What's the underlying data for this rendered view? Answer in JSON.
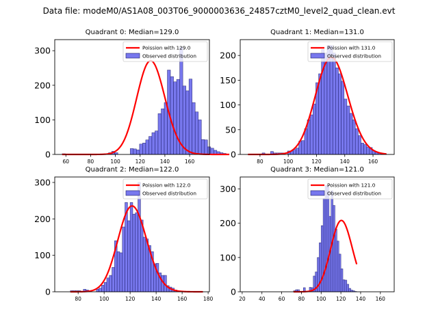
{
  "chart_data": {
    "type": "bar",
    "title": "Data file: modeM0/AS1A08_003T06_9000003636_24857cztM0_level2_quad_clean.evt",
    "panels": [
      {
        "title": "Quadrant 0: Median=129.0",
        "median": 129.0,
        "xlim": [
          51,
          176
        ],
        "ylim": [
          0,
          332
        ],
        "xticks": [
          60,
          80,
          100,
          120,
          140,
          160
        ],
        "yticks": [
          0,
          100,
          200,
          300
        ],
        "legend": {
          "line": "Poission with 129.0",
          "bars": "Observed distribution",
          "position": "upper right"
        },
        "bin_width": 2.5,
        "bin_start": 57,
        "counts": [
          2,
          0,
          0,
          0,
          0,
          0,
          0,
          0,
          0,
          0,
          0,
          0,
          0,
          0,
          0,
          5,
          9,
          5,
          0,
          0,
          0,
          0,
          17,
          16,
          13,
          30,
          33,
          42,
          52,
          63,
          68,
          118,
          132,
          150,
          244,
          225,
          210,
          217,
          310,
          198,
          184,
          218,
          150,
          123,
          100,
          43,
          42,
          22,
          18,
          12,
          8,
          5,
          3,
          1
        ]
      },
      {
        "title": "Quadrant 1: Median=131.0",
        "median": 131.0,
        "xlim": [
          66,
          175
        ],
        "ylim": [
          0,
          232
        ],
        "xticks": [
          80,
          100,
          120,
          140,
          160
        ],
        "yticks": [
          0,
          50,
          100,
          150,
          200
        ],
        "legend": {
          "line": "Poission with 131.0",
          "bars": "Observed distribution",
          "position": "upper right"
        },
        "bin_width": 2.0,
        "bin_start": 71.5,
        "counts": [
          0,
          0,
          0,
          0,
          0,
          3,
          0,
          0,
          6,
          3,
          3,
          3,
          3,
          0,
          7,
          7,
          10,
          13,
          27,
          28,
          52,
          70,
          80,
          102,
          145,
          163,
          212,
          205,
          220,
          220,
          205,
          175,
          163,
          148,
          112,
          98,
          83,
          70,
          52,
          38,
          23,
          20,
          15,
          14,
          8,
          5,
          3,
          1,
          1
        ]
      },
      {
        "title": "Quadrant 2: Median=122.0",
        "median": 122.0,
        "xlim": [
          62,
          181
        ],
        "ylim": [
          0,
          315
        ],
        "xticks": [
          80,
          100,
          120,
          140,
          160,
          180
        ],
        "yticks": [
          0,
          100,
          200,
          300
        ],
        "legend": {
          "line": "Poission with 122.0",
          "bars": "Observed distribution",
          "position": "upper right"
        },
        "bin_width": 2.0,
        "bin_start": 74,
        "counts": [
          3,
          3,
          3,
          3,
          0,
          7,
          5,
          0,
          0,
          0,
          7,
          10,
          18,
          26,
          38,
          45,
          67,
          140,
          110,
          107,
          178,
          245,
          195,
          245,
          213,
          217,
          300,
          197,
          150,
          145,
          127,
          110,
          77,
          78,
          52,
          45,
          45,
          17,
          13,
          10,
          5,
          3,
          1,
          1,
          0,
          0,
          0,
          0,
          0,
          0,
          0
        ]
      },
      {
        "title": "Quadrant 3: Median=121.0",
        "median": 121.0,
        "xlim": [
          18,
          174
        ],
        "ylim": [
          0,
          335
        ],
        "xticks": [
          20,
          40,
          60,
          80,
          100,
          120,
          140,
          160
        ],
        "yticks": [
          0,
          100,
          200,
          300
        ],
        "legend": {
          "line": "Poission with 121.0",
          "bars": "Observed distribution",
          "position": "upper right"
        },
        "bin_width": 2.0,
        "bin_start": 72,
        "counts": [
          3,
          6,
          6,
          0,
          0,
          12,
          0,
          0,
          13,
          12,
          46,
          58,
          100,
          143,
          193,
          273,
          310,
          310,
          220,
          295,
          252,
          183,
          148,
          110,
          67,
          35,
          34,
          22,
          10,
          5,
          3,
          1
        ]
      }
    ],
    "colors": {
      "line": "#ff0000",
      "bar_fill": "#7878ee",
      "bar_edge": "#1a1a66"
    }
  }
}
